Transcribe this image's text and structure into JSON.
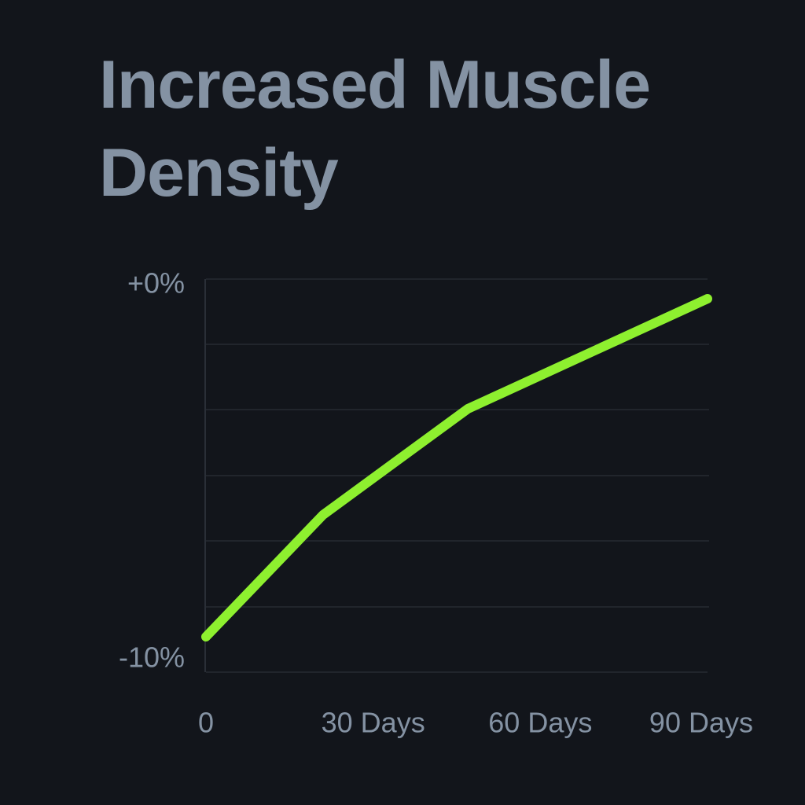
{
  "chart_data": {
    "type": "line",
    "title": "Increased Muscle Density",
    "x": [
      0,
      21,
      47,
      90
    ],
    "series": [
      {
        "color": "#8ef02f",
        "values": [
          -9.1,
          -6,
          -3.3,
          -0.5
        ]
      }
    ],
    "xlim": [
      0,
      90
    ],
    "xticks": [
      0,
      {
        "value": 30,
        "label": "30 Days"
      },
      {
        "value": 60,
        "label": "60 Days"
      },
      {
        "value": 90,
        "label": "90 Days"
      }
    ],
    "ylim": [
      -10,
      0
    ],
    "yticks": [
      {
        "value": 0,
        "label": "+0%"
      },
      {
        "value": -10,
        "label": "-10%"
      }
    ],
    "grid": true
  }
}
